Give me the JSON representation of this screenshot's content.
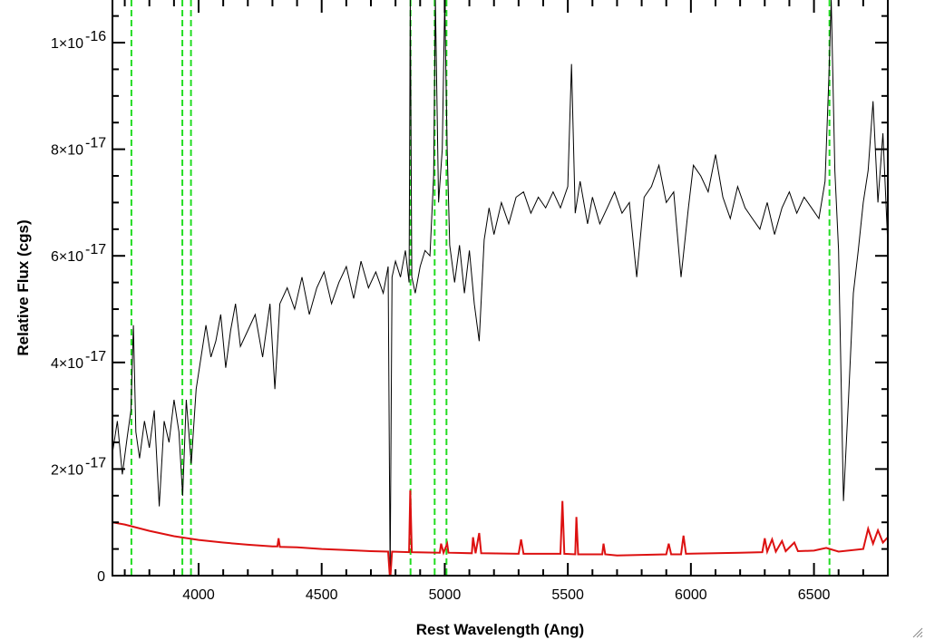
{
  "chart_data": {
    "type": "line",
    "title": "",
    "xlabel": "Rest Wavelength (Ang)",
    "ylabel": "Relative Flux (cgs)",
    "xlim": [
      3650,
      6800
    ],
    "ylim": [
      0,
      1.08e-16
    ],
    "x_ticks": [
      {
        "value": 4000,
        "label": "4000"
      },
      {
        "value": 4500,
        "label": "4500"
      },
      {
        "value": 5000,
        "label": "5000"
      },
      {
        "value": 5500,
        "label": "5500"
      },
      {
        "value": 6000,
        "label": "6000"
      },
      {
        "value": 6500,
        "label": "6500"
      }
    ],
    "y_ticks": [
      {
        "value": 0,
        "mantissa": "0",
        "exponent": ""
      },
      {
        "value": 2e-17,
        "mantissa": "2×10",
        "exponent": "-17"
      },
      {
        "value": 4e-17,
        "mantissa": "4×10",
        "exponent": "-17"
      },
      {
        "value": 6e-17,
        "mantissa": "6×10",
        "exponent": "-17"
      },
      {
        "value": 8e-17,
        "mantissa": "8×10",
        "exponent": "-17"
      },
      {
        "value": 1e-16,
        "mantissa": "1×10",
        "exponent": "-16"
      }
    ],
    "series": [
      {
        "color": "#000000",
        "points": [
          [
            3650,
            2.3e-17
          ],
          [
            3670,
            2.9e-17
          ],
          [
            3690,
            1.9e-17
          ],
          [
            3710,
            2.6e-17
          ],
          [
            3725,
            3.1e-17
          ],
          [
            3735,
            4.7e-17
          ],
          [
            3745,
            2.7e-17
          ],
          [
            3760,
            2.2e-17
          ],
          [
            3780,
            2.9e-17
          ],
          [
            3800,
            2.4e-17
          ],
          [
            3820,
            3.1e-17
          ],
          [
            3840,
            1.3e-17
          ],
          [
            3860,
            2.9e-17
          ],
          [
            3880,
            2.5e-17
          ],
          [
            3900,
            3.3e-17
          ],
          [
            3920,
            2.7e-17
          ],
          [
            3935,
            1.5e-17
          ],
          [
            3950,
            3.3e-17
          ],
          [
            3970,
            2.1e-17
          ],
          [
            3990,
            3.5e-17
          ],
          [
            4010,
            4.1e-17
          ],
          [
            4030,
            4.7e-17
          ],
          [
            4050,
            4.1e-17
          ],
          [
            4070,
            4.4e-17
          ],
          [
            4090,
            4.9e-17
          ],
          [
            4110,
            3.9e-17
          ],
          [
            4130,
            4.6e-17
          ],
          [
            4150,
            5.1e-17
          ],
          [
            4170,
            4.3e-17
          ],
          [
            4200,
            4.6e-17
          ],
          [
            4230,
            4.9e-17
          ],
          [
            4260,
            4.1e-17
          ],
          [
            4290,
            5.1e-17
          ],
          [
            4310,
            3.5e-17
          ],
          [
            4330,
            5.1e-17
          ],
          [
            4360,
            5.4e-17
          ],
          [
            4390,
            5e-17
          ],
          [
            4420,
            5.6e-17
          ],
          [
            4450,
            4.9e-17
          ],
          [
            4480,
            5.4e-17
          ],
          [
            4510,
            5.7e-17
          ],
          [
            4540,
            5.1e-17
          ],
          [
            4570,
            5.5e-17
          ],
          [
            4600,
            5.8e-17
          ],
          [
            4630,
            5.2e-17
          ],
          [
            4660,
            5.9e-17
          ],
          [
            4690,
            5.4e-17
          ],
          [
            4720,
            5.7e-17
          ],
          [
            4750,
            5.3e-17
          ],
          [
            4770,
            5.8e-17
          ],
          [
            4778,
            0
          ],
          [
            4786,
            5.6e-17
          ],
          [
            4800,
            5.9e-17
          ],
          [
            4820,
            5.6e-17
          ],
          [
            4840,
            6.1e-17
          ],
          [
            4855,
            5.5e-17
          ],
          [
            4860,
            1.08e-16
          ],
          [
            4866,
            5.6e-17
          ],
          [
            4880,
            5.3e-17
          ],
          [
            4900,
            5.8e-17
          ],
          [
            4920,
            6.1e-17
          ],
          [
            4940,
            6e-17
          ],
          [
            4955,
            7.5e-17
          ],
          [
            4962,
            1.08e-16
          ],
          [
            4975,
            7e-17
          ],
          [
            4990,
            8e-17
          ],
          [
            5000,
            1.08e-16
          ],
          [
            5010,
            8e-17
          ],
          [
            5020,
            6.2e-17
          ],
          [
            5040,
            5.5e-17
          ],
          [
            5060,
            6.2e-17
          ],
          [
            5080,
            5.3e-17
          ],
          [
            5100,
            6.1e-17
          ],
          [
            5120,
            5.1e-17
          ],
          [
            5140,
            4.4e-17
          ],
          [
            5160,
            6.3e-17
          ],
          [
            5180,
            6.9e-17
          ],
          [
            5200,
            6.4e-17
          ],
          [
            5230,
            7e-17
          ],
          [
            5260,
            6.6e-17
          ],
          [
            5290,
            7.1e-17
          ],
          [
            5320,
            7.2e-17
          ],
          [
            5350,
            6.8e-17
          ],
          [
            5380,
            7.1e-17
          ],
          [
            5410,
            6.9e-17
          ],
          [
            5440,
            7.2e-17
          ],
          [
            5470,
            6.9e-17
          ],
          [
            5500,
            7.3e-17
          ],
          [
            5515,
            9.6e-17
          ],
          [
            5530,
            6.8e-17
          ],
          [
            5550,
            7.4e-17
          ],
          [
            5580,
            6.6e-17
          ],
          [
            5600,
            7.1e-17
          ],
          [
            5630,
            6.6e-17
          ],
          [
            5660,
            6.9e-17
          ],
          [
            5690,
            7.2e-17
          ],
          [
            5720,
            6.8e-17
          ],
          [
            5750,
            7e-17
          ],
          [
            5780,
            5.6e-17
          ],
          [
            5810,
            7.1e-17
          ],
          [
            5840,
            7.3e-17
          ],
          [
            5870,
            7.7e-17
          ],
          [
            5900,
            7e-17
          ],
          [
            5930,
            7.2e-17
          ],
          [
            5960,
            5.6e-17
          ],
          [
            5990,
            6.9e-17
          ],
          [
            6010,
            7.7e-17
          ],
          [
            6040,
            7.5e-17
          ],
          [
            6070,
            7.2e-17
          ],
          [
            6100,
            7.9e-17
          ],
          [
            6130,
            7.1e-17
          ],
          [
            6160,
            6.7e-17
          ],
          [
            6190,
            7.3e-17
          ],
          [
            6220,
            6.9e-17
          ],
          [
            6250,
            6.7e-17
          ],
          [
            6280,
            6.5e-17
          ],
          [
            6310,
            7e-17
          ],
          [
            6340,
            6.4e-17
          ],
          [
            6370,
            6.9e-17
          ],
          [
            6400,
            7.2e-17
          ],
          [
            6430,
            6.8e-17
          ],
          [
            6460,
            7.1e-17
          ],
          [
            6490,
            6.9e-17
          ],
          [
            6520,
            6.7e-17
          ],
          [
            6545,
            7.4e-17
          ],
          [
            6560,
            9.3e-17
          ],
          [
            6570,
            1.08e-16
          ],
          [
            6585,
            7.6e-17
          ],
          [
            6600,
            6.1e-17
          ],
          [
            6620,
            1.4e-17
          ],
          [
            6640,
            3.3e-17
          ],
          [
            6660,
            5.3e-17
          ],
          [
            6680,
            6.1e-17
          ],
          [
            6700,
            7e-17
          ],
          [
            6720,
            7.6e-17
          ],
          [
            6740,
            8.9e-17
          ],
          [
            6760,
            7e-17
          ],
          [
            6780,
            8.3e-17
          ],
          [
            6800,
            6.2e-17
          ]
        ]
      },
      {
        "color": "#dd1111",
        "points": [
          [
            3650,
            1e-17
          ],
          [
            3700,
            9.6e-18
          ],
          [
            3800,
            8.4e-18
          ],
          [
            3900,
            7.4e-18
          ],
          [
            4000,
            6.7e-18
          ],
          [
            4100,
            6.2e-18
          ],
          [
            4200,
            5.8e-18
          ],
          [
            4300,
            5.5e-18
          ],
          [
            4320,
            5.5e-18
          ],
          [
            4325,
            7e-18
          ],
          [
            4330,
            5.4e-18
          ],
          [
            4400,
            5.3e-18
          ],
          [
            4500,
            5e-18
          ],
          [
            4600,
            4.8e-18
          ],
          [
            4700,
            4.6e-18
          ],
          [
            4770,
            4.5e-18
          ],
          [
            4778,
            -1e-18
          ],
          [
            4786,
            4.5e-18
          ],
          [
            4855,
            4.4e-18
          ],
          [
            4860,
            1.6e-17
          ],
          [
            4866,
            4.4e-18
          ],
          [
            4980,
            4.3e-18
          ],
          [
            4985,
            6e-18
          ],
          [
            4995,
            4.3e-18
          ],
          [
            5010,
            6e-18
          ],
          [
            5015,
            4.3e-18
          ],
          [
            5110,
            4.2e-18
          ],
          [
            5115,
            7.2e-18
          ],
          [
            5125,
            4.2e-18
          ],
          [
            5140,
            8e-18
          ],
          [
            5148,
            4.2e-18
          ],
          [
            5300,
            4.1e-18
          ],
          [
            5310,
            6.8e-18
          ],
          [
            5320,
            4.1e-18
          ],
          [
            5470,
            4.1e-18
          ],
          [
            5478,
            1.4e-17
          ],
          [
            5486,
            4.1e-18
          ],
          [
            5530,
            4e-18
          ],
          [
            5535,
            1.1e-17
          ],
          [
            5542,
            4e-18
          ],
          [
            5640,
            4e-18
          ],
          [
            5645,
            6e-18
          ],
          [
            5652,
            4e-18
          ],
          [
            5700,
            3.8e-18
          ],
          [
            5800,
            3.9e-18
          ],
          [
            5900,
            4e-18
          ],
          [
            5910,
            6e-18
          ],
          [
            5920,
            4e-18
          ],
          [
            5960,
            4e-18
          ],
          [
            5970,
            7.5e-18
          ],
          [
            5980,
            4.1e-18
          ],
          [
            6100,
            4.2e-18
          ],
          [
            6200,
            4.3e-18
          ],
          [
            6290,
            4.4e-18
          ],
          [
            6300,
            7e-18
          ],
          [
            6310,
            4.5e-18
          ],
          [
            6330,
            6.8e-18
          ],
          [
            6345,
            4.5e-18
          ],
          [
            6370,
            6.5e-18
          ],
          [
            6385,
            4.6e-18
          ],
          [
            6420,
            6.2e-18
          ],
          [
            6435,
            4.6e-18
          ],
          [
            6500,
            4.7e-18
          ],
          [
            6550,
            5.2e-18
          ],
          [
            6600,
            4.5e-18
          ],
          [
            6700,
            5e-18
          ],
          [
            6720,
            8.8e-18
          ],
          [
            6740,
            6e-18
          ],
          [
            6760,
            8.5e-18
          ],
          [
            6780,
            6.2e-18
          ],
          [
            6800,
            7.2e-18
          ]
        ]
      }
    ],
    "vlines": {
      "color": "#22dd22",
      "style": "dashed",
      "x": [
        3727,
        3934,
        3969,
        4861,
        4959,
        5007,
        6563
      ]
    }
  }
}
